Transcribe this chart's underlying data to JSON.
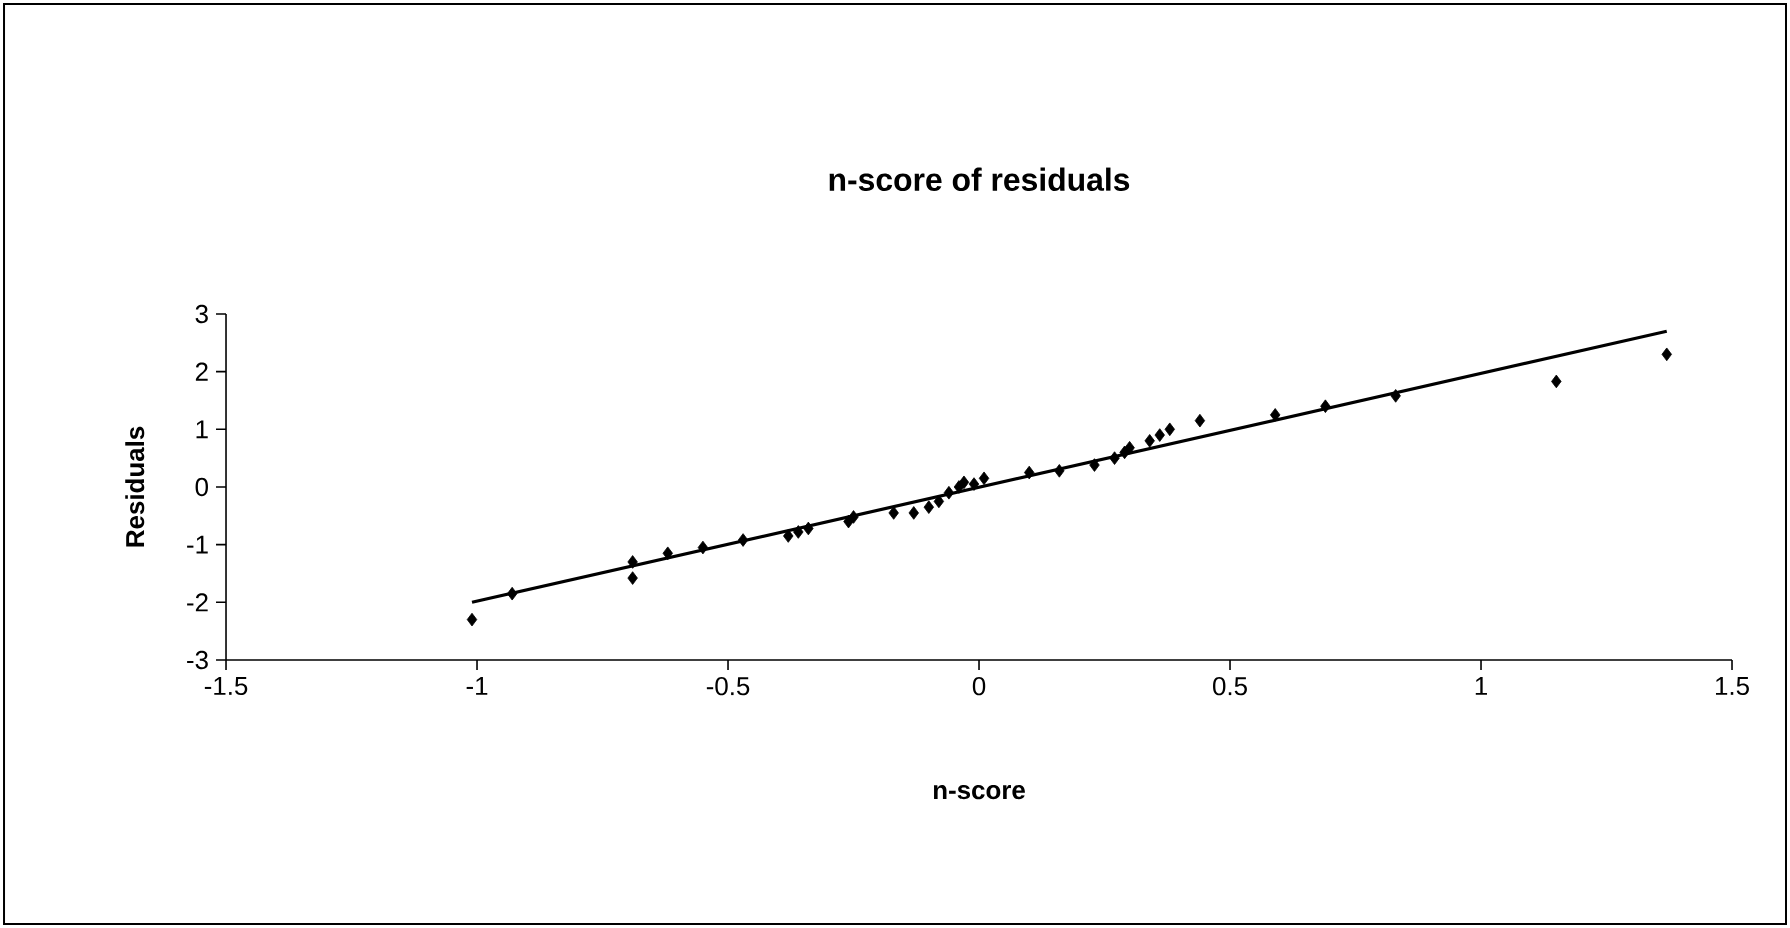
{
  "chart_data": {
    "type": "scatter",
    "title": "n-score of residuals",
    "xlabel": "n-score",
    "ylabel": "Residuals",
    "xlim": [
      -1.5,
      1.5
    ],
    "xticks": [
      -1.5,
      -1,
      -0.5,
      0,
      0.5,
      1,
      1.5
    ],
    "ylim": [
      -3,
      3
    ],
    "yticks": [
      -3,
      -2,
      -1,
      0,
      1,
      2,
      3
    ],
    "grid": false,
    "series": [
      {
        "color": "#000000",
        "marker": "diamond",
        "x": [
          -1.01,
          -0.93,
          -0.69,
          -0.69,
          -0.62,
          -0.55,
          -0.47,
          -0.38,
          -0.36,
          -0.34,
          -0.26,
          -0.25,
          -0.17,
          -0.13,
          -0.1,
          -0.08,
          -0.06,
          -0.04,
          -0.03,
          -0.01,
          0.01,
          0.1,
          0.16,
          0.23,
          0.27,
          0.29,
          0.3,
          0.34,
          0.36,
          0.38,
          0.44,
          0.59,
          0.69,
          0.83,
          1.15,
          1.37
        ],
        "values": [
          -2.3,
          -1.85,
          -1.3,
          -1.58,
          -1.15,
          -1.05,
          -0.92,
          -0.85,
          -0.78,
          -0.72,
          -0.6,
          -0.52,
          -0.45,
          -0.45,
          -0.35,
          -0.25,
          -0.1,
          0,
          0.08,
          0.05,
          0.15,
          0.25,
          0.28,
          0.38,
          0.5,
          0.6,
          0.68,
          0.8,
          0.9,
          1.0,
          1.15,
          1.25,
          1.4,
          1.58,
          1.83,
          2.3
        ]
      },
      {
        "type": "line",
        "color": "#000000",
        "marker": "none",
        "line_style": "solid",
        "x": [
          -1.01,
          1.37
        ],
        "values": [
          -2.0,
          2.7
        ]
      }
    ]
  }
}
